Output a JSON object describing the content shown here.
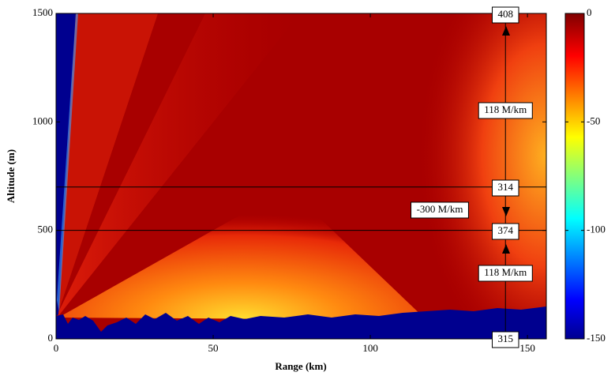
{
  "chart_data": {
    "type": "heatmap",
    "xlabel": "Range (km)",
    "ylabel": "Altitude (m)",
    "xlim": [
      0,
      156
    ],
    "xticks": [
      0,
      50,
      100,
      150
    ],
    "ylim": [
      0,
      1500
    ],
    "yticks": [
      0,
      500,
      1000,
      1500
    ],
    "colorbar": {
      "clim": [
        -150,
        0
      ],
      "ticks": [
        -150,
        -100,
        -50,
        0
      ],
      "colormap": "jet"
    },
    "layer_altitudes": [
      700,
      500
    ],
    "profile_range": 143,
    "annotations": [
      "408",
      "118 M/km",
      "314",
      "-300 M/km",
      "374",
      "118 M/km",
      "315"
    ]
  }
}
